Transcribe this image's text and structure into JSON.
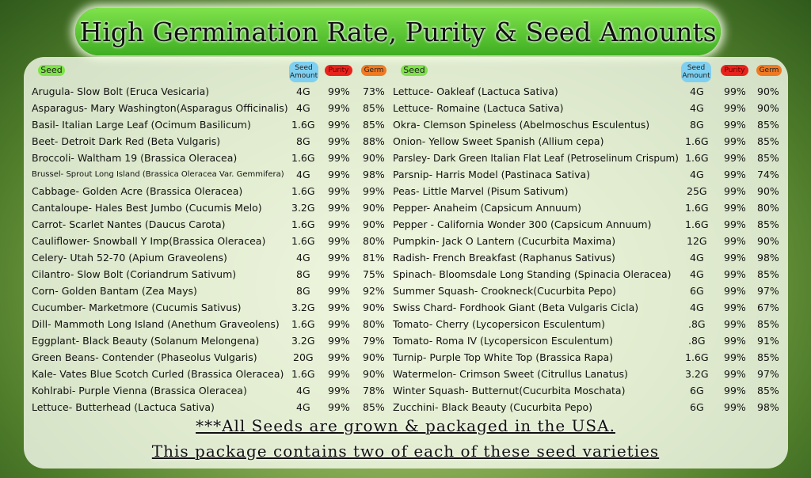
{
  "title": "High Germination Rate, Purity & Seed Amounts",
  "tables": [
    {
      "header": [
        "Seed",
        "Seed Amount",
        "Purity",
        "Germ"
      ],
      "rows": [
        [
          "Arugula- Slow Bolt (Eruca Vesicaria)",
          "4G",
          "99%",
          "73%"
        ],
        [
          "Asparagus- Mary Washington(Asparagus Officinalis)",
          "4G",
          "99%",
          "85%"
        ],
        [
          "Basil- Italian Large Leaf (Ocimum Basilicum)",
          "1.6G",
          "99%",
          "85%"
        ],
        [
          "Beet- Detroit Dark Red (Beta Vulgaris)",
          "8G",
          "99%",
          "88%"
        ],
        [
          "Broccoli- Waltham 19 (Brassica Oleracea)",
          "1.6G",
          "99%",
          "90%"
        ],
        [
          "Brussel- Sprout Long Island (Brassica Oleracea Var. Gemmifera)",
          "4G",
          "99%",
          "98%"
        ],
        [
          "Cabbage- Golden Acre (Brassica Oleracea)",
          "1.6G",
          "99%",
          "99%"
        ],
        [
          "Cantaloupe- Hales Best Jumbo (Cucumis Melo)",
          "3.2G",
          "99%",
          "90%"
        ],
        [
          "Carrot- Scarlet Nantes (Daucus Carota)",
          "1.6G",
          "99%",
          "90%"
        ],
        [
          "Cauliflower- Snowball Y Imp(Brassica Oleracea)",
          "1.6G",
          "99%",
          "80%"
        ],
        [
          "Celery- Utah 52-70 (Apium Graveolens)",
          "4G",
          "99%",
          "81%"
        ],
        [
          "Cilantro- Slow Bolt (Coriandrum Sativum)",
          "8G",
          "99%",
          "75%"
        ],
        [
          "Corn- Golden Bantam (Zea Mays)",
          "8G",
          "99%",
          "92%"
        ],
        [
          "Cucumber- Marketmore (Cucumis Sativus)",
          "3.2G",
          "99%",
          "90%"
        ],
        [
          "Dill- Mammoth Long Island (Anethum Graveolens)",
          "1.6G",
          "99%",
          "80%"
        ],
        [
          "Eggplant- Black Beauty (Solanum Melongena)",
          "3.2G",
          "99%",
          "79%"
        ],
        [
          "Green Beans- Contender (Phaseolus Vulgaris)",
          "20G",
          "99%",
          "90%"
        ],
        [
          "Kale- Vates Blue Scotch Curled (Brassica Oleracea)",
          "1.6G",
          "99%",
          "90%"
        ],
        [
          "Kohlrabi- Purple Vienna (Brassica Oleracea)",
          "4G",
          "99%",
          "78%"
        ],
        [
          "Lettuce- Butterhead (Lactuca Sativa)",
          "4G",
          "99%",
          "85%"
        ]
      ]
    },
    {
      "header": [
        "Seed",
        "Seed Amount",
        "Purity",
        "Germ"
      ],
      "rows": [
        [
          "Lettuce- Oakleaf (Lactuca Sativa)",
          "4G",
          "99%",
          "90%"
        ],
        [
          "Lettuce- Romaine (Lactuca Sativa)",
          "4G",
          "99%",
          "90%"
        ],
        [
          "Okra- Clemson Spineless (Abelmoschus Esculentus)",
          "8G",
          "99%",
          "85%"
        ],
        [
          "Onion- Yellow Sweet Spanish (Allium cepa)",
          "1.6G",
          "99%",
          "85%"
        ],
        [
          "Parsley- Dark Green Italian Flat Leaf (Petroselinum Crispum)",
          "1.6G",
          "99%",
          "85%"
        ],
        [
          "Parsnip- Harris Model (Pastinaca Sativa)",
          "4G",
          "99%",
          "74%"
        ],
        [
          "Peas- Little Marvel (Pisum Sativum)",
          "25G",
          "99%",
          "90%"
        ],
        [
          "Pepper- Anaheim (Capsicum Annuum)",
          "1.6G",
          "99%",
          "80%"
        ],
        [
          "Pepper - California Wonder 300 (Capsicum Annuum)",
          "1.6G",
          "99%",
          "85%"
        ],
        [
          "Pumpkin- Jack O Lantern (Cucurbita Maxima)",
          "12G",
          "99%",
          "90%"
        ],
        [
          "Radish- French Breakfast (Raphanus Sativus)",
          "4G",
          "99%",
          "98%"
        ],
        [
          "Spinach- Bloomsdale Long Standing (Spinacia Oleracea)",
          "4G",
          "99%",
          "85%"
        ],
        [
          "Summer Squash- Crookneck(Cucurbita Pepo)",
          "6G",
          "99%",
          "97%"
        ],
        [
          "Swiss Chard- Fordhook Giant (Beta Vulgaris Cicla)",
          "4G",
          "99%",
          "67%"
        ],
        [
          "Tomato- Cherry (Lycopersicon Esculentum)",
          ".8G",
          "99%",
          "85%"
        ],
        [
          "Tomato- Roma IV (Lycopersicon Esculentum)",
          ".8G",
          "99%",
          "91%"
        ],
        [
          "Turnip- Purple Top White Top (Brassica Rapa)",
          "1.6G",
          "99%",
          "85%"
        ],
        [
          "Watermelon- Crimson Sweet (Citrullus Lanatus)",
          "3.2G",
          "99%",
          "97%"
        ],
        [
          "Winter Squash- Butternut(Cucurbita Moschata)",
          "6G",
          "99%",
          "85%"
        ],
        [
          "Zucchini- Black Beauty (Cucurbita Pepo)",
          "6G",
          "99%",
          "98%"
        ]
      ]
    }
  ],
  "footer": [
    "***All Seeds are grown & packaged in the USA.",
    "This package contains two of each of these seed varieties"
  ]
}
